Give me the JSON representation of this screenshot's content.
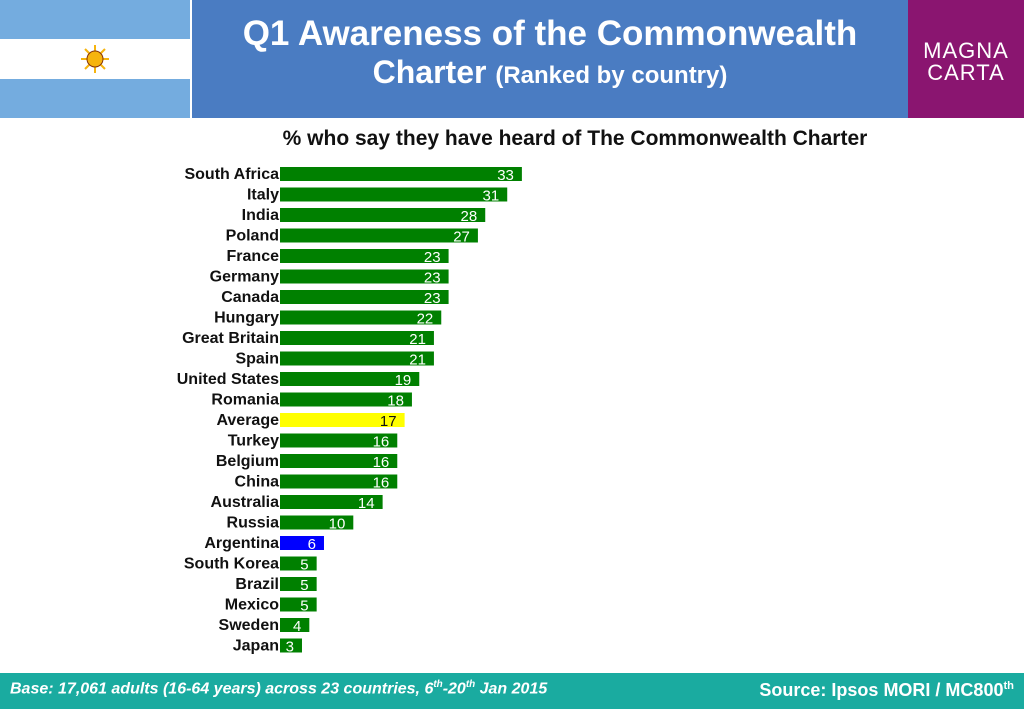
{
  "header": {
    "title_line1": "Q1 Awareness of the Commonwealth",
    "title_line2": "Charter",
    "title_sub": "(Ranked by country)"
  },
  "logo": {
    "line1": "MAGNA",
    "line2": "CARTA"
  },
  "colors": {
    "header": "#4a7cc2",
    "logo": "#8a1570",
    "footer": "#1aaba0",
    "bar": "#008000",
    "average": "#ffff00",
    "highlight": "#0000ff"
  },
  "chart_data": {
    "type": "bar",
    "orientation": "horizontal",
    "title": "% who say they have heard of The Commonwealth Charter",
    "categories": [
      "South Africa",
      "Italy",
      "India",
      "Poland",
      "France",
      "Germany",
      "Canada",
      "Hungary",
      "Great Britain",
      "Spain",
      "United States",
      "Romania",
      "Average",
      "Turkey",
      "Belgium",
      "China",
      "Australia",
      "Russia",
      "Argentina",
      "South Korea",
      "Brazil",
      "Mexico",
      "Sweden",
      "Japan"
    ],
    "values": [
      33,
      31,
      28,
      27,
      23,
      23,
      23,
      22,
      21,
      21,
      19,
      18,
      17,
      16,
      16,
      16,
      14,
      10,
      6,
      5,
      5,
      5,
      4,
      3
    ],
    "highlight": {
      "Average": "#ffff00",
      "Argentina": "#0000ff"
    },
    "bar_color": "#008000",
    "xlim": [
      0,
      100
    ],
    "grid": false,
    "legend": "none"
  },
  "footer": {
    "base_pre": "Base: 17,061 adults (16-64 years) across 23 countries, 6",
    "base_sup1": "th",
    "base_mid": "-20",
    "base_sup2": "th",
    "base_post": " Jan 2015",
    "source": "Source: Ipsos MORI / MC800",
    "source_sup": "th"
  }
}
